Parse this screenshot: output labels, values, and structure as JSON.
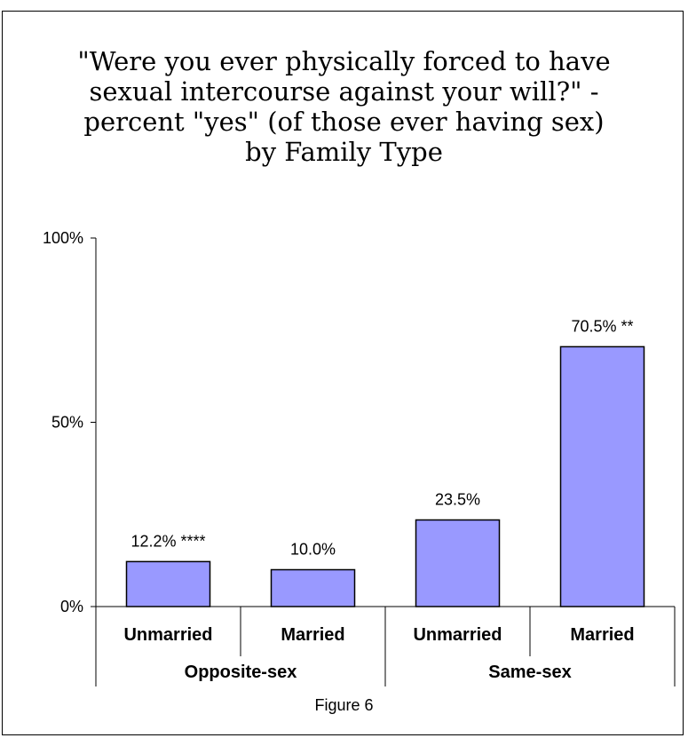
{
  "chart_data": {
    "type": "bar",
    "title": [
      "\"Were you ever physically forced to have",
      "sexual intercourse against your will?\" -",
      "percent \"yes\" (of those ever having sex)",
      "by Family Type"
    ],
    "categories": [
      "Unmarried",
      "Married",
      "Unmarried",
      "Married"
    ],
    "groups": [
      {
        "label": "Opposite-sex",
        "span": 2
      },
      {
        "label": "Same-sex",
        "span": 2
      }
    ],
    "values": [
      12.2,
      10.0,
      23.5,
      70.5
    ],
    "value_labels": [
      "12.2% ****",
      "10.0%",
      "23.5%",
      "70.5% **"
    ],
    "ylim": [
      0,
      100
    ],
    "yticks": [
      0,
      50,
      100
    ],
    "ytick_labels": [
      "0%",
      "50%",
      "100%"
    ],
    "grid": false,
    "legend": "none",
    "bar_color": "#9999ff"
  },
  "caption": "Figure 6"
}
